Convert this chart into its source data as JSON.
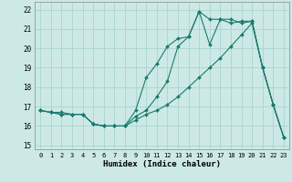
{
  "xlabel": "Humidex (Indice chaleur)",
  "bg_color": "#cce9e5",
  "grid_color": "#aad4cf",
  "line_color": "#1a7a6e",
  "xlim": [
    -0.5,
    23.5
  ],
  "ylim": [
    14.8,
    22.4
  ],
  "xticks": [
    0,
    1,
    2,
    3,
    4,
    5,
    6,
    7,
    8,
    9,
    10,
    11,
    12,
    13,
    14,
    15,
    16,
    17,
    18,
    19,
    20,
    21,
    22,
    23
  ],
  "yticks": [
    15,
    16,
    17,
    18,
    19,
    20,
    21,
    22
  ],
  "series1_x": [
    0,
    1,
    2,
    3,
    4,
    5,
    6,
    7,
    8,
    9,
    10,
    11,
    12,
    13,
    14,
    15,
    16,
    17,
    18,
    19,
    20,
    21,
    22,
    23
  ],
  "series1_y": [
    16.8,
    16.7,
    16.7,
    16.6,
    16.6,
    16.1,
    16.0,
    16.0,
    16.0,
    16.5,
    16.8,
    17.5,
    18.3,
    20.1,
    20.6,
    21.9,
    20.2,
    21.5,
    21.5,
    21.3,
    21.4,
    19.0,
    17.1,
    15.4
  ],
  "series2_x": [
    0,
    1,
    2,
    3,
    4,
    5,
    6,
    7,
    8,
    9,
    10,
    11,
    12,
    13,
    14,
    15,
    16,
    17,
    18,
    19,
    20,
    21,
    22,
    23
  ],
  "series2_y": [
    16.8,
    16.7,
    16.6,
    16.6,
    16.6,
    16.1,
    16.0,
    16.0,
    16.0,
    16.8,
    18.5,
    19.2,
    20.1,
    20.5,
    20.6,
    21.9,
    21.5,
    21.5,
    21.3,
    21.4,
    21.4,
    19.0,
    17.1,
    15.4
  ],
  "series3_x": [
    0,
    1,
    2,
    3,
    4,
    5,
    6,
    7,
    8,
    9,
    10,
    11,
    12,
    13,
    14,
    15,
    16,
    17,
    18,
    19,
    20,
    21,
    22,
    23
  ],
  "series3_y": [
    16.8,
    16.7,
    16.6,
    16.6,
    16.6,
    16.1,
    16.0,
    16.0,
    16.0,
    16.3,
    16.6,
    16.8,
    17.1,
    17.5,
    18.0,
    18.5,
    19.0,
    19.5,
    20.1,
    20.7,
    21.3,
    19.0,
    17.1,
    15.4
  ]
}
